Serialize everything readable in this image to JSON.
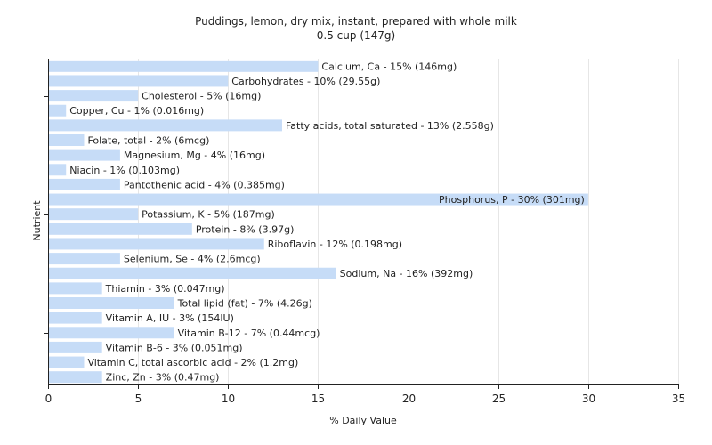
{
  "chart_data": {
    "type": "bar",
    "orientation": "horizontal",
    "title": "Puddings, lemon, dry mix, instant, prepared with whole milk",
    "subtitle": "0.5 cup (147g)",
    "xlabel": "% Daily Value",
    "ylabel": "Nutrient",
    "xlim": [
      0,
      35
    ],
    "xticks": [
      0,
      5,
      10,
      15,
      20,
      25,
      30,
      35
    ],
    "grid": true,
    "colors": {
      "bar": "#c6dcf7",
      "grid": "#e6e6e6",
      "axis": "#222222"
    },
    "categories": [
      "Calcium, Ca",
      "Carbohydrates",
      "Cholesterol",
      "Copper, Cu",
      "Fatty acids, total saturated",
      "Folate, total",
      "Magnesium, Mg",
      "Niacin",
      "Pantothenic acid",
      "Phosphorus, P",
      "Potassium, K",
      "Protein",
      "Riboflavin",
      "Selenium, Se",
      "Sodium, Na",
      "Thiamin",
      "Total lipid (fat)",
      "Vitamin A, IU",
      "Vitamin B-12",
      "Vitamin B-6",
      "Vitamin C, total ascorbic acid",
      "Zinc, Zn"
    ],
    "values": [
      15,
      10,
      5,
      1,
      13,
      2,
      4,
      1,
      4,
      30,
      5,
      8,
      12,
      4,
      16,
      3,
      7,
      3,
      7,
      3,
      2,
      3
    ],
    "labels": [
      "Calcium, Ca - 15% (146mg)",
      "Carbohydrates - 10% (29.55g)",
      "Cholesterol - 5% (16mg)",
      "Copper, Cu - 1% (0.016mg)",
      "Fatty acids, total saturated - 13% (2.558g)",
      "Folate, total - 2% (6mcg)",
      "Magnesium, Mg - 4% (16mg)",
      "Niacin - 1% (0.103mg)",
      "Pantothenic acid - 4% (0.385mg)",
      "Phosphorus, P - 30% (301mg)",
      "Potassium, K - 5% (187mg)",
      "Protein - 8% (3.97g)",
      "Riboflavin - 12% (0.198mg)",
      "Selenium, Se - 4% (2.6mcg)",
      "Sodium, Na - 16% (392mg)",
      "Thiamin - 3% (0.047mg)",
      "Total lipid (fat) - 7% (4.26g)",
      "Vitamin A, IU - 3% (154IU)",
      "Vitamin B-12 - 7% (0.44mcg)",
      "Vitamin B-6 - 3% (0.051mg)",
      "Vitamin C, total ascorbic acid - 2% (1.2mg)",
      "Zinc, Zn - 3% (0.47mg)"
    ]
  }
}
